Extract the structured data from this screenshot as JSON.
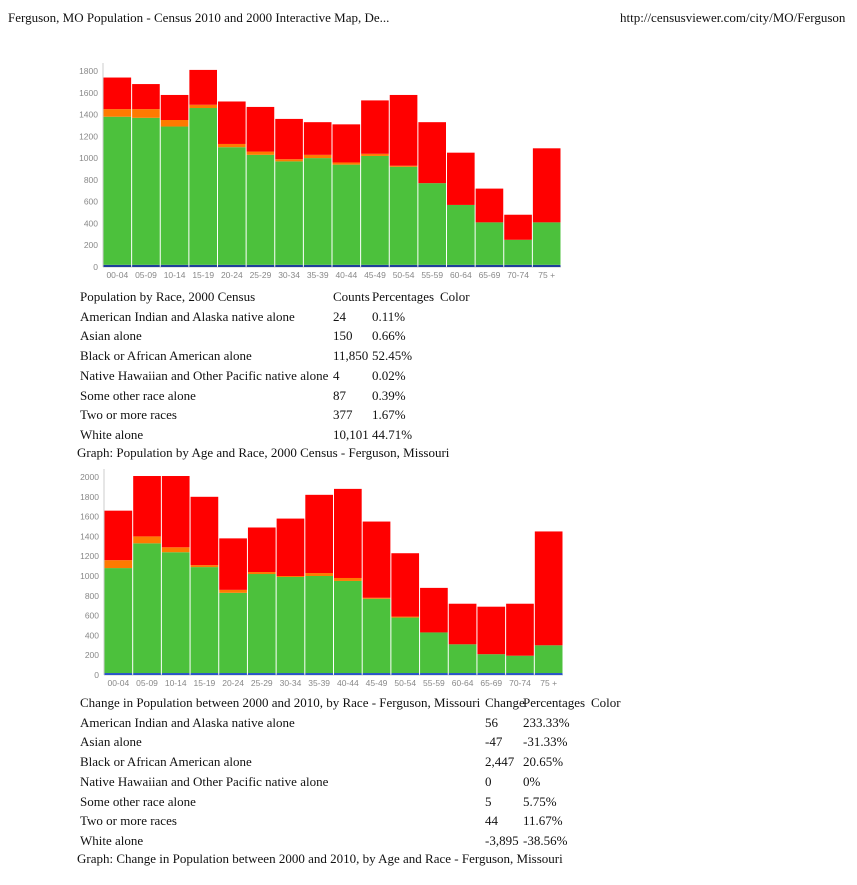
{
  "page_header": {
    "title": "Ferguson, MO Population - Census 2010 and 2000 Interactive Map, De...",
    "url": "http://censusviewer.com/city/MO/Ferguson"
  },
  "table_2000": {
    "headers": [
      "Population by Race, 2000 Census",
      "Counts",
      "Percentages",
      "Color"
    ],
    "rows": [
      [
        "American Indian and Alaska native alone",
        "24",
        "0.11%"
      ],
      [
        "Asian alone",
        "150",
        "0.66%"
      ],
      [
        "Black or African American alone",
        "11,850",
        "52.45%"
      ],
      [
        "Native Hawaiian and Other Pacific native alone",
        "4",
        "0.02%"
      ],
      [
        "Some other race alone",
        "87",
        "0.39%"
      ],
      [
        "Two or more races",
        "377",
        "1.67%"
      ],
      [
        "White alone",
        "10,101",
        "44.71%"
      ]
    ],
    "caption": "Graph: Population by Age and Race, 2000 Census - Ferguson, Missouri"
  },
  "table_change": {
    "headers": [
      "Change in Population between 2000 and 2010, by Race - Ferguson, Missouri",
      "Change",
      "Percentages",
      "Color"
    ],
    "rows": [
      [
        "American Indian and Alaska native alone",
        "56",
        "233.33%"
      ],
      [
        "Asian alone",
        "-47",
        "-31.33%"
      ],
      [
        "Black or African American alone",
        "2,447",
        "20.65%"
      ],
      [
        "Native Hawaiian and Other Pacific native alone",
        "0",
        "0%"
      ],
      [
        "Some other race alone",
        "5",
        "5.75%"
      ],
      [
        "Two or more races",
        "44",
        "11.67%"
      ],
      [
        "White alone",
        "-3,895",
        "-38.56%"
      ]
    ],
    "caption": "Graph: Change in Population between 2000 and 2010, by Age and Race - Ferguson, Missouri"
  },
  "chart_data": [
    {
      "type": "bar",
      "stacked": true,
      "categories": [
        "00-04",
        "05-09",
        "10-14",
        "15-19",
        "20-24",
        "25-29",
        "30-34",
        "35-39",
        "40-44",
        "45-49",
        "50-54",
        "55-59",
        "60-64",
        "65-69",
        "70-74",
        "75 +"
      ],
      "ylim": [
        0,
        1800
      ],
      "yticks": [
        0,
        200,
        400,
        600,
        800,
        1000,
        1200,
        1400,
        1600,
        1800
      ],
      "grid": false,
      "series": [
        {
          "color": "#1f3f9a",
          "values": [
            20,
            20,
            20,
            20,
            20,
            20,
            20,
            20,
            20,
            20,
            20,
            20,
            20,
            20,
            20,
            20
          ]
        },
        {
          "color": "#4cc13c",
          "values": [
            1360,
            1350,
            1270,
            1440,
            1080,
            1010,
            950,
            980,
            920,
            1000,
            900,
            750,
            550,
            390,
            230,
            390
          ]
        },
        {
          "color": "#ff7a00",
          "values": [
            70,
            80,
            60,
            30,
            30,
            30,
            20,
            30,
            20,
            20,
            10,
            0,
            0,
            0,
            0,
            0
          ]
        },
        {
          "color": "#ff0000",
          "values": [
            290,
            230,
            230,
            320,
            390,
            410,
            370,
            300,
            350,
            490,
            650,
            560,
            480,
            310,
            230,
            680
          ]
        }
      ]
    },
    {
      "type": "bar",
      "stacked": true,
      "categories": [
        "00-04",
        "05-09",
        "10-14",
        "15-19",
        "20-24",
        "25-29",
        "30-34",
        "35-39",
        "40-44",
        "45-49",
        "50-54",
        "55-59",
        "60-64",
        "65-69",
        "70-74",
        "75 +"
      ],
      "ylim": [
        0,
        2000
      ],
      "yticks": [
        0,
        200,
        400,
        600,
        800,
        1000,
        1200,
        1400,
        1600,
        1800,
        2000
      ],
      "grid": false,
      "series": [
        {
          "color": "#2a55c8",
          "values": [
            20,
            20,
            20,
            20,
            20,
            20,
            20,
            20,
            20,
            20,
            20,
            20,
            20,
            20,
            20,
            20
          ]
        },
        {
          "color": "#4cc13c",
          "values": [
            1060,
            1310,
            1220,
            1070,
            810,
            1000,
            970,
            980,
            930,
            750,
            560,
            410,
            290,
            190,
            175,
            280
          ]
        },
        {
          "color": "#ff7a00",
          "values": [
            80,
            70,
            50,
            20,
            30,
            20,
            10,
            30,
            30,
            10,
            10,
            0,
            0,
            0,
            0,
            0
          ]
        },
        {
          "color": "#ff0000",
          "values": [
            500,
            610,
            720,
            690,
            520,
            450,
            580,
            790,
            900,
            770,
            640,
            450,
            410,
            480,
            525,
            1150
          ]
        }
      ]
    }
  ]
}
